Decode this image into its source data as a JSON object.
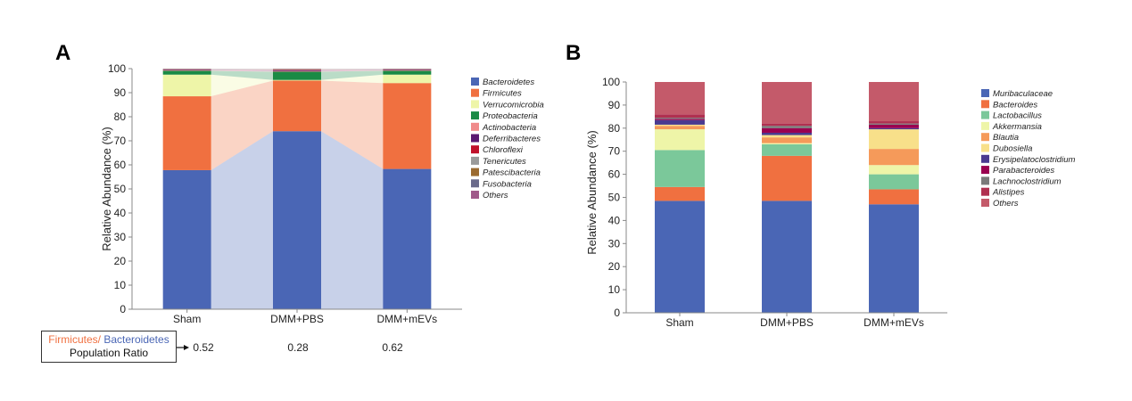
{
  "panels": [
    {
      "letter": "A",
      "ylabel": "Relative Abundance (%)",
      "yticks": [
        "0",
        "10",
        "20",
        "30",
        "40",
        "50",
        "60",
        "70",
        "80",
        "90",
        "100"
      ],
      "ratio": {
        "label_firmicutes": "Firmicutes",
        "label_sep": "/ ",
        "label_bacteroidetes": "Bacteroidetes",
        "label_line2": "Population Ratio",
        "values": [
          "0.52",
          "0.28",
          "0.62"
        ]
      }
    },
    {
      "letter": "B",
      "ylabel": "Relative Abundance (%)",
      "yticks": [
        "0",
        "10",
        "20",
        "30",
        "40",
        "50",
        "60",
        "70",
        "80",
        "90",
        "100"
      ]
    }
  ],
  "chart_data": [
    {
      "type": "bar",
      "stacked": true,
      "categories": [
        "Sham",
        "DMM+PBS",
        "DMM+mEVs"
      ],
      "ylim": [
        0,
        100
      ],
      "ylabel": "Relative Abundance (%)",
      "legend_position": "right",
      "series": [
        {
          "name": "Bacteroidetes",
          "color": "#4A66B5",
          "values": [
            57.8,
            74.0,
            58.3
          ]
        },
        {
          "name": "Firmicutes",
          "color": "#F07040",
          "values": [
            30.7,
            21.0,
            35.7
          ]
        },
        {
          "name": "Verrucomicrobia",
          "color": "#EEF5A8",
          "values": [
            9.0,
            0.3,
            3.5
          ]
        },
        {
          "name": "Proteobacteria",
          "color": "#1A8A45",
          "values": [
            1.6,
            3.4,
            1.6
          ]
        },
        {
          "name": "Actinobacteria",
          "color": "#F08A8A",
          "values": [
            0.2,
            0.3,
            0.2
          ]
        },
        {
          "name": "Deferribacteres",
          "color": "#5A1870",
          "values": [
            0.2,
            0.3,
            0.2
          ]
        },
        {
          "name": "Chloroflexi",
          "color": "#C0102A",
          "values": [
            0.1,
            0.2,
            0.1
          ]
        },
        {
          "name": "Tenericutes",
          "color": "#9A9A9A",
          "values": [
            0.1,
            0.2,
            0.1
          ]
        },
        {
          "name": "Patescibacteria",
          "color": "#9A6A30",
          "values": [
            0.1,
            0.1,
            0.1
          ]
        },
        {
          "name": "Fusobacteria",
          "color": "#6A6A8A",
          "values": [
            0.1,
            0.1,
            0.1
          ]
        },
        {
          "name": "Others",
          "color": "#A05A8A",
          "values": [
            0.1,
            0.1,
            0.1
          ]
        }
      ],
      "flow_bands": true
    },
    {
      "type": "bar",
      "stacked": true,
      "categories": [
        "Sham",
        "DMM+PBS",
        "DMM+mEVs"
      ],
      "ylim": [
        0,
        100
      ],
      "ylabel": "Relative Abundance (%)",
      "legend_position": "right",
      "series": [
        {
          "name": "Muribaculaceae",
          "color": "#4A66B5",
          "values": [
            48.5,
            48.5,
            47.0
          ]
        },
        {
          "name": "Bacteroides",
          "color": "#F07040",
          "values": [
            6.0,
            19.5,
            6.5
          ]
        },
        {
          "name": "Lactobacillus",
          "color": "#7BC89A",
          "values": [
            16.0,
            5.0,
            6.5
          ]
        },
        {
          "name": "Akkermansia",
          "color": "#EEF5A8",
          "values": [
            9.0,
            0.5,
            4.0
          ]
        },
        {
          "name": "Blautia",
          "color": "#F59A5A",
          "values": [
            1.5,
            2.5,
            7.0
          ]
        },
        {
          "name": "Dubosiella",
          "color": "#F8E08A",
          "values": [
            0.5,
            1.0,
            8.5
          ]
        },
        {
          "name": "Erysipelatoclostridium",
          "color": "#4A3A90",
          "values": [
            2.0,
            1.0,
            0.5
          ]
        },
        {
          "name": "Parabacteroides",
          "color": "#9A0050",
          "values": [
            0.5,
            2.0,
            1.5
          ]
        },
        {
          "name": "Lachnoclostridium",
          "color": "#7A7A7A",
          "values": [
            0.5,
            1.0,
            0.5
          ]
        },
        {
          "name": "Alistipes",
          "color": "#B03050",
          "values": [
            1.5,
            1.0,
            1.0
          ]
        },
        {
          "name": "Others",
          "color": "#C45A6A",
          "values": [
            14.0,
            18.0,
            17.0
          ]
        }
      ]
    }
  ]
}
